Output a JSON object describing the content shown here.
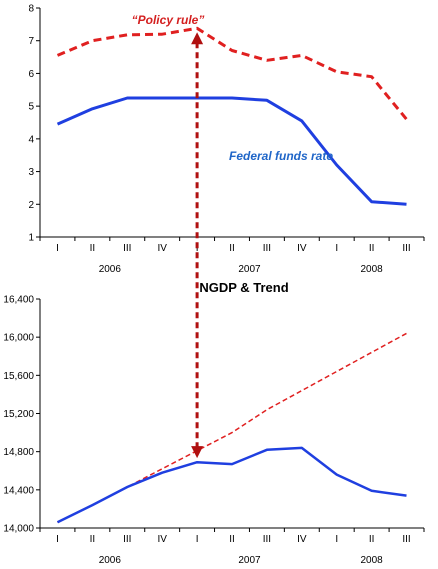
{
  "colors": {
    "policy": "#e02020",
    "fed": "#1f3fe0",
    "trend": "#e02020",
    "ngdp": "#1f3fe0",
    "anno_blue": "#2066c8",
    "arrow": "#b01010"
  },
  "chart_data": [
    {
      "type": "line",
      "title": "",
      "xlabel": "",
      "ylabel": "",
      "ylim": [
        1,
        8
      ],
      "yticks": [
        "1",
        "2",
        "3",
        "4",
        "5",
        "6",
        "7",
        "8"
      ],
      "quarters": [
        "I",
        "II",
        "III",
        "IV",
        "I",
        "II",
        "III",
        "IV",
        "I",
        "II",
        "III"
      ],
      "years": [
        "2006",
        "2007",
        "2008"
      ],
      "series": [
        {
          "name": "“Policy rule”",
          "style": "dashed",
          "values": [
            6.55,
            7.0,
            7.18,
            7.2,
            7.38,
            6.7,
            6.4,
            6.55,
            6.05,
            5.9,
            4.6
          ]
        },
        {
          "name": "Federal funds rate",
          "style": "solid",
          "values": [
            4.45,
            4.92,
            5.25,
            5.25,
            5.25,
            5.25,
            5.18,
            4.55,
            3.2,
            2.08,
            2.0
          ]
        }
      ]
    },
    {
      "type": "line",
      "title": "NGDP & Trend",
      "xlabel": "",
      "ylabel": "",
      "ylim": [
        14000,
        16400
      ],
      "yticks": [
        "14,000",
        "14,400",
        "14,800",
        "15,200",
        "15,600",
        "16,000",
        "16,400"
      ],
      "quarters": [
        "I",
        "II",
        "III",
        "IV",
        "I",
        "II",
        "III",
        "IV",
        "I",
        "II",
        "III"
      ],
      "years": [
        "2006",
        "2007",
        "2008"
      ],
      "series": [
        {
          "name": "",
          "style": "dashed",
          "values": [
            14060,
            14240,
            14430,
            14620,
            14810,
            15000,
            15240,
            15440,
            15640,
            15840,
            16040
          ]
        },
        {
          "name": "",
          "style": "solid",
          "values": [
            14060,
            14240,
            14430,
            14580,
            14690,
            14670,
            14820,
            14840,
            14560,
            14390,
            14340
          ]
        }
      ]
    }
  ]
}
